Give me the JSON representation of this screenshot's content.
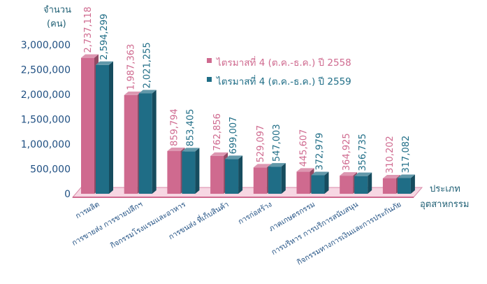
{
  "chart_data": {
    "type": "bar",
    "ylabel": [
      "จำนวน",
      "(คน)"
    ],
    "xlabel": [
      "ประเภท",
      "อุตสาหกรรม"
    ],
    "ylim": [
      0,
      3000000
    ],
    "yticks": [
      "0",
      "500,000",
      "1,000,000",
      "1,500,000",
      "2,000,000",
      "2,500,000",
      "3,000,000"
    ],
    "categories": [
      "การผลิต",
      "การขายส่ง การขายปลีกฯ",
      "กิจกรรมโรงแรมและอาหาร",
      "การขนส่ง ที่เก็บสินค้า",
      "การก่อสร้าง",
      "ภาคเกษตรกรรม",
      "การบริหาร การบริการสนับสนุน",
      "กิจกรรมทางการเงินและการประกันภัย"
    ],
    "series": [
      {
        "name": "ไตรมาสที่ 4 (ต.ค.-ธ.ค.) ปี 2558",
        "color": "#cf6a8f",
        "values": [
          2737118,
          1987363,
          859794,
          762856,
          529097,
          445607,
          364925,
          310202
        ],
        "labels": [
          "2,737,118",
          "1,987,363",
          "859,794",
          "762,856",
          "529,097",
          "445,607",
          "364,925",
          "310,202"
        ]
      },
      {
        "name": "ไตรมาสที่ 4 (ต.ค.-ธ.ค.) ปี 2559",
        "color": "#1f6d86",
        "values": [
          2594299,
          2021255,
          853405,
          699007,
          547003,
          372979,
          356735,
          317082
        ],
        "labels": [
          "2,594,299",
          "2,021,255",
          "853,405",
          "699,007",
          "547,003",
          "372,979",
          "356,735",
          "317,082"
        ]
      }
    ],
    "grid": false,
    "legend": "top-right"
  }
}
